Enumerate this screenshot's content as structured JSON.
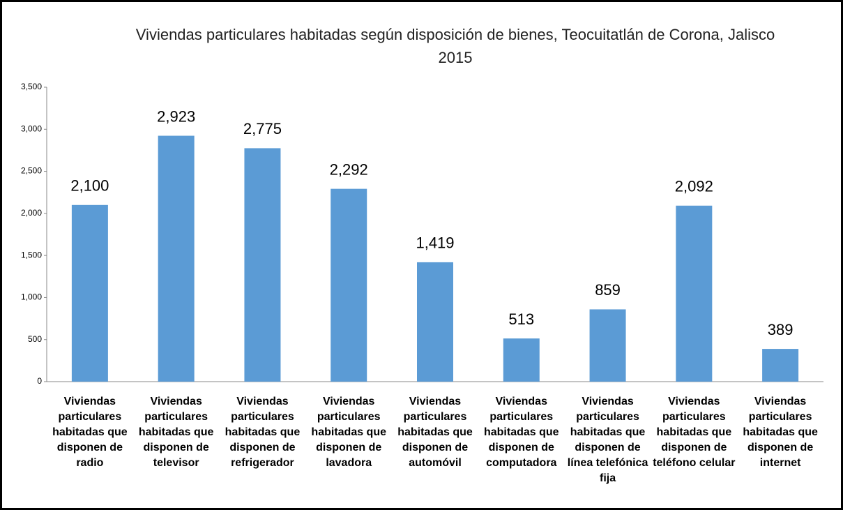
{
  "chart_data": {
    "type": "bar",
    "title": "Viviendas particulares habitadas según disposición de bienes, Teocuitatlán de Corona, Jalisco 2015",
    "categories": [
      "Viviendas particulares habitadas que disponen de radio",
      "Viviendas particulares habitadas que disponen de televisor",
      "Viviendas particulares habitadas que disponen de refrigerador",
      "Viviendas particulares habitadas que disponen de lavadora",
      "Viviendas particulares habitadas que disponen de automóvil",
      "Viviendas particulares habitadas que disponen de computadora",
      "Viviendas particulares habitadas que disponen de línea telefónica fija",
      "Viviendas particulares habitadas que disponen de teléfono celular",
      "Viviendas particulares habitadas que disponen de internet"
    ],
    "values": [
      2100,
      2923,
      2775,
      2292,
      1419,
      513,
      859,
      2092,
      389
    ],
    "value_labels": [
      "2,100",
      "2,923",
      "2,775",
      "2,292",
      "1,419",
      "513",
      "859",
      "2,092",
      "389"
    ],
    "color": "#5b9bd5",
    "ylim": [
      0,
      3500
    ],
    "yticks": [
      0,
      500,
      {
        "value": 1000,
        "label": "1,000"
      },
      {
        "value": 1500,
        "label": "1,500"
      },
      {
        "value": 2000,
        "label": "2,000"
      },
      {
        "value": 2500,
        "label": "2,500"
      },
      {
        "value": 3000,
        "label": "3,000"
      },
      {
        "value": 3500,
        "label": "3,500"
      }
    ],
    "grid": false
  }
}
